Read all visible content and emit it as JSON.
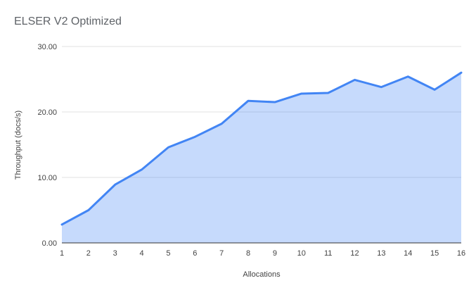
{
  "chart": {
    "title": "ELSER V2 Optimized",
    "y_axis": {
      "title": "Throughput (docs/s)",
      "ticks": [
        "0.00",
        "10.00",
        "20.00",
        "30.00"
      ],
      "tick_values": [
        0,
        10,
        20,
        30
      ]
    },
    "x_axis": {
      "title": "Allocations",
      "ticks": [
        "1",
        "2",
        "3",
        "4",
        "5",
        "6",
        "7",
        "8",
        "9",
        "10",
        "11",
        "12",
        "13",
        "14",
        "15",
        "16"
      ]
    },
    "colors": {
      "line": "#4285f4",
      "fill": "rgba(66,133,244,0.3)",
      "grid": "#e0e0e0",
      "baseline": "#333333",
      "title_text": "#5f6368",
      "axis_text": "#424242"
    }
  },
  "chart_data": {
    "type": "area",
    "title": "ELSER V2 Optimized",
    "xlabel": "Allocations",
    "ylabel": "Throughput (docs/s)",
    "x": [
      1,
      2,
      3,
      4,
      5,
      6,
      7,
      8,
      9,
      10,
      11,
      12,
      13,
      14,
      15,
      16
    ],
    "series": [
      {
        "name": "Throughput (docs/s)",
        "values": [
          2.8,
          5.0,
          8.9,
          11.2,
          14.6,
          16.2,
          18.2,
          21.7,
          21.5,
          22.8,
          22.9,
          24.9,
          23.8,
          25.4,
          23.4,
          26.0
        ]
      }
    ],
    "xlim": [
      1,
      16
    ],
    "ylim": [
      0,
      30
    ],
    "grid": true,
    "legend": "none"
  }
}
